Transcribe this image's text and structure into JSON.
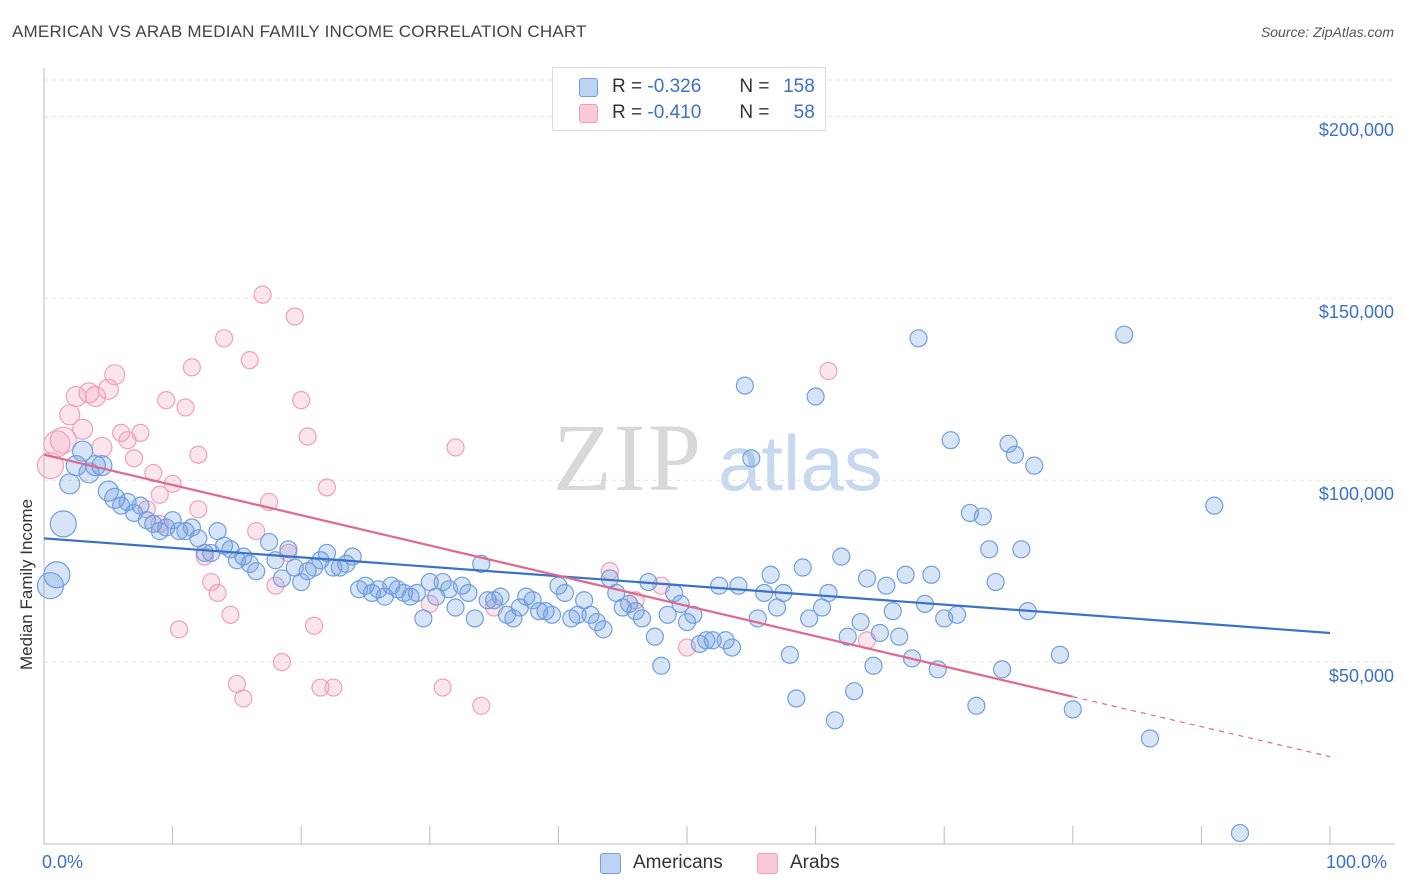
{
  "title": "AMERICAN VS ARAB MEDIAN FAMILY INCOME CORRELATION CHART",
  "source": "Source: ZipAtlas.com",
  "watermark": {
    "zip": "ZIP",
    "atlas": "atlas"
  },
  "legend_top": [
    {
      "r_label": "R =",
      "r_value": "-0.326",
      "n_label": "N =",
      "n_value": "158"
    },
    {
      "r_label": "R =",
      "r_value": "-0.410",
      "n_label": "N =",
      "n_value": "58"
    }
  ],
  "legend_bottom": [
    "Americans",
    "Arabs"
  ],
  "chart_data": {
    "type": "scatter",
    "xlabel": "",
    "ylabel": "Median Family Income",
    "xlim": [
      0,
      100
    ],
    "ylim": [
      0,
      210000
    ],
    "x_tick_labels": [
      "0.0%",
      "100.0%"
    ],
    "y_ticks": [
      50000,
      100000,
      150000,
      200000
    ],
    "y_tick_labels": [
      "$50,000",
      "$100,000",
      "$150,000",
      "$200,000"
    ],
    "grid": true,
    "colors": {
      "Americans": "#6f9fe0",
      "Arabs": "#f0a0bb",
      "americans_line": "#3a72c8",
      "arabs_line": "#e06890"
    },
    "series": [
      {
        "name": "Americans",
        "trend": {
          "x0": 0,
          "y0": 84000,
          "x1": 100,
          "y1": 58000
        },
        "points": [
          [
            0.5,
            71000
          ],
          [
            1,
            74000
          ],
          [
            1.5,
            88000
          ],
          [
            2,
            99000
          ],
          [
            2.5,
            104000
          ],
          [
            3,
            108000
          ],
          [
            3.5,
            102000
          ],
          [
            4,
            104000
          ],
          [
            4.5,
            104000
          ],
          [
            5,
            97000
          ],
          [
            5.5,
            95000
          ],
          [
            6,
            93000
          ],
          [
            6.5,
            94000
          ],
          [
            7,
            91000
          ],
          [
            7.5,
            93000
          ],
          [
            8,
            89000
          ],
          [
            8.5,
            88000
          ],
          [
            9,
            86000
          ],
          [
            9.5,
            87000
          ],
          [
            10,
            89000
          ],
          [
            10.5,
            86000
          ],
          [
            11,
            86000
          ],
          [
            11.5,
            87000
          ],
          [
            12,
            84000
          ],
          [
            12.5,
            80000
          ],
          [
            13,
            80000
          ],
          [
            13.5,
            86000
          ],
          [
            14,
            82000
          ],
          [
            14.5,
            81000
          ],
          [
            15,
            78000
          ],
          [
            15.5,
            79000
          ],
          [
            16,
            77000
          ],
          [
            16.5,
            75000
          ],
          [
            17.5,
            83000
          ],
          [
            18,
            78000
          ],
          [
            18.5,
            73000
          ],
          [
            19,
            81000
          ],
          [
            19.5,
            76000
          ],
          [
            20,
            72000
          ],
          [
            20.5,
            75000
          ],
          [
            21,
            76000
          ],
          [
            21.5,
            78000
          ],
          [
            22,
            80000
          ],
          [
            22.5,
            76000
          ],
          [
            23,
            76000
          ],
          [
            23.5,
            77000
          ],
          [
            24,
            79000
          ],
          [
            24.5,
            70000
          ],
          [
            25,
            71000
          ],
          [
            25.5,
            69000
          ],
          [
            26,
            70000
          ],
          [
            26.5,
            68000
          ],
          [
            27,
            71000
          ],
          [
            27.5,
            70000
          ],
          [
            28,
            69000
          ],
          [
            28.5,
            68000
          ],
          [
            29,
            69000
          ],
          [
            29.5,
            62000
          ],
          [
            30,
            72000
          ],
          [
            30.5,
            68000
          ],
          [
            31,
            72000
          ],
          [
            31.5,
            70000
          ],
          [
            32,
            65000
          ],
          [
            32.5,
            71000
          ],
          [
            33,
            69000
          ],
          [
            33.5,
            62000
          ],
          [
            34,
            77000
          ],
          [
            34.5,
            67000
          ],
          [
            35,
            67000
          ],
          [
            35.5,
            68000
          ],
          [
            36,
            63000
          ],
          [
            36.5,
            62000
          ],
          [
            37,
            65000
          ],
          [
            37.5,
            68000
          ],
          [
            38,
            67000
          ],
          [
            38.5,
            64000
          ],
          [
            39,
            64000
          ],
          [
            39.5,
            63000
          ],
          [
            40,
            71000
          ],
          [
            40.5,
            69000
          ],
          [
            41,
            62000
          ],
          [
            41.5,
            63000
          ],
          [
            42,
            67000
          ],
          [
            42.5,
            63000
          ],
          [
            43,
            61000
          ],
          [
            43.5,
            59000
          ],
          [
            44,
            73000
          ],
          [
            44.5,
            69000
          ],
          [
            45,
            65000
          ],
          [
            45.5,
            66000
          ],
          [
            46,
            64000
          ],
          [
            46.5,
            62000
          ],
          [
            47,
            72000
          ],
          [
            47.5,
            57000
          ],
          [
            48,
            49000
          ],
          [
            48.5,
            63000
          ],
          [
            49,
            69000
          ],
          [
            49.5,
            66000
          ],
          [
            50,
            61000
          ],
          [
            50.5,
            63000
          ],
          [
            51,
            55000
          ],
          [
            51.5,
            56000
          ],
          [
            52,
            56000
          ],
          [
            52.5,
            71000
          ],
          [
            53,
            56000
          ],
          [
            53.5,
            54000
          ],
          [
            54,
            71000
          ],
          [
            54.5,
            126000
          ],
          [
            55,
            106000
          ],
          [
            55.5,
            62000
          ],
          [
            56,
            69000
          ],
          [
            56.5,
            74000
          ],
          [
            57,
            65000
          ],
          [
            57.5,
            69000
          ],
          [
            58,
            52000
          ],
          [
            58.5,
            40000
          ],
          [
            59,
            76000
          ],
          [
            59.5,
            62000
          ],
          [
            60,
            123000
          ],
          [
            60.5,
            65000
          ],
          [
            61,
            69000
          ],
          [
            61.5,
            34000
          ],
          [
            62,
            79000
          ],
          [
            62.5,
            57000
          ],
          [
            63,
            42000
          ],
          [
            63.5,
            61000
          ],
          [
            64,
            73000
          ],
          [
            64.5,
            49000
          ],
          [
            65,
            58000
          ],
          [
            65.5,
            71000
          ],
          [
            66,
            64000
          ],
          [
            66.5,
            57000
          ],
          [
            67,
            74000
          ],
          [
            67.5,
            51000
          ],
          [
            68,
            139000
          ],
          [
            68.5,
            66000
          ],
          [
            69,
            74000
          ],
          [
            69.5,
            48000
          ],
          [
            70,
            62000
          ],
          [
            70.5,
            111000
          ],
          [
            71,
            63000
          ],
          [
            72,
            91000
          ],
          [
            72.5,
            38000
          ],
          [
            73,
            90000
          ],
          [
            73.5,
            81000
          ],
          [
            74,
            72000
          ],
          [
            74.5,
            48000
          ],
          [
            75,
            110000
          ],
          [
            75.5,
            107000
          ],
          [
            76,
            81000
          ],
          [
            76.5,
            64000
          ],
          [
            77,
            104000
          ],
          [
            79,
            52000
          ],
          [
            80,
            37000
          ],
          [
            84,
            140000
          ],
          [
            86,
            29000
          ],
          [
            91,
            93000
          ],
          [
            93,
            3000
          ]
        ]
      },
      {
        "name": "Arabs",
        "trend": {
          "x0": 0,
          "y0": 107000,
          "x1": 80,
          "y1": 40500,
          "dash_to": {
            "x": 100,
            "y": 24000
          }
        },
        "points": [
          [
            0.5,
            104000
          ],
          [
            1,
            110000
          ],
          [
            1.5,
            111000
          ],
          [
            2,
            118000
          ],
          [
            2.5,
            123000
          ],
          [
            3,
            114000
          ],
          [
            3.5,
            124000
          ],
          [
            4,
            123000
          ],
          [
            4.5,
            109000
          ],
          [
            5,
            125000
          ],
          [
            5.5,
            129000
          ],
          [
            6,
            113000
          ],
          [
            6.5,
            111000
          ],
          [
            7,
            106000
          ],
          [
            7.5,
            113000
          ],
          [
            8,
            92000
          ],
          [
            8.5,
            102000
          ],
          [
            9,
            96000
          ],
          [
            9.5,
            122000
          ],
          [
            10,
            99000
          ],
          [
            10.5,
            59000
          ],
          [
            11,
            120000
          ],
          [
            11.5,
            131000
          ],
          [
            12,
            107000
          ],
          [
            12.5,
            79000
          ],
          [
            13,
            72000
          ],
          [
            13.5,
            69000
          ],
          [
            14,
            139000
          ],
          [
            14.5,
            63000
          ],
          [
            15,
            44000
          ],
          [
            15.5,
            40000
          ],
          [
            16,
            133000
          ],
          [
            16.5,
            86000
          ],
          [
            17,
            151000
          ],
          [
            17.5,
            94000
          ],
          [
            18,
            71000
          ],
          [
            18.5,
            50000
          ],
          [
            19,
            80000
          ],
          [
            19.5,
            145000
          ],
          [
            20,
            122000
          ],
          [
            20.5,
            112000
          ],
          [
            21,
            60000
          ],
          [
            21.5,
            43000
          ],
          [
            22,
            98000
          ],
          [
            22.5,
            43000
          ],
          [
            30,
            66000
          ],
          [
            31,
            43000
          ],
          [
            32,
            109000
          ],
          [
            34,
            38000
          ],
          [
            44,
            75000
          ],
          [
            46,
            67000
          ],
          [
            48,
            71000
          ],
          [
            50,
            54000
          ],
          [
            61,
            130000
          ],
          [
            64,
            56000
          ],
          [
            35,
            65000
          ],
          [
            12,
            92000
          ],
          [
            9,
            88000
          ]
        ]
      }
    ]
  }
}
